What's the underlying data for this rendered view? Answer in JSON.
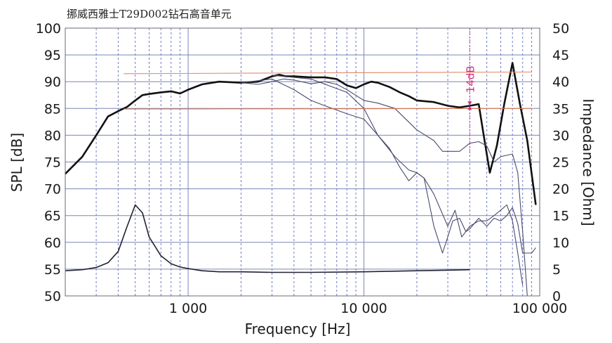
{
  "chart_data": {
    "type": "line",
    "title": "挪威西雅士T29D002钻石高音单元",
    "xlabel": "Frequency [Hz]",
    "ylabel_left": "SPL [dB]",
    "ylabel_right": "Impedance [Ohm]",
    "x_scale": "log",
    "xlim": [
      200,
      100000
    ],
    "ylim_left": [
      50,
      100
    ],
    "ylim_right": [
      0,
      50
    ],
    "x_ticks": [
      {
        "value": 1000,
        "label": "1 000"
      },
      {
        "value": 10000,
        "label": "10 000"
      },
      {
        "value": 100000,
        "label": "100 000"
      }
    ],
    "y_ticks_left": [
      100,
      95,
      90,
      85,
      80,
      75,
      70,
      65,
      60,
      55,
      50
    ],
    "y_ticks_right": [
      50,
      45,
      40,
      35,
      30,
      25,
      20,
      15,
      10,
      5,
      0
    ],
    "grid": true,
    "series": [
      {
        "axis": "left",
        "style": "bold",
        "color": "#111111",
        "points": [
          [
            200,
            72.8
          ],
          [
            250,
            76
          ],
          [
            300,
            80
          ],
          [
            350,
            83.5
          ],
          [
            400,
            84.5
          ],
          [
            450,
            85.3
          ],
          [
            500,
            86.5
          ],
          [
            550,
            87.5
          ],
          [
            600,
            87.7
          ],
          [
            700,
            88
          ],
          [
            800,
            88.2
          ],
          [
            900,
            87.8
          ],
          [
            1000,
            88.5
          ],
          [
            1200,
            89.5
          ],
          [
            1500,
            90
          ],
          [
            2000,
            89.8
          ],
          [
            2500,
            90
          ],
          [
            3000,
            91
          ],
          [
            3300,
            91.3
          ],
          [
            3600,
            91
          ],
          [
            4000,
            91
          ],
          [
            5000,
            90.8
          ],
          [
            6000,
            90.8
          ],
          [
            7000,
            90.5
          ],
          [
            8000,
            89.3
          ],
          [
            9000,
            88.8
          ],
          [
            10000,
            89.5
          ],
          [
            11000,
            90
          ],
          [
            12000,
            89.8
          ],
          [
            14000,
            89
          ],
          [
            16000,
            88
          ],
          [
            18000,
            87.3
          ],
          [
            20000,
            86.5
          ],
          [
            25000,
            86.2
          ],
          [
            30000,
            85.5
          ],
          [
            35000,
            85.2
          ],
          [
            40000,
            85.5
          ],
          [
            45000,
            85.8
          ],
          [
            48000,
            80
          ],
          [
            52000,
            73
          ],
          [
            57000,
            78
          ],
          [
            63000,
            86
          ],
          [
            70000,
            93.5
          ],
          [
            77000,
            86
          ],
          [
            85000,
            79
          ],
          [
            95000,
            67
          ]
        ]
      },
      {
        "axis": "left",
        "style": "thin",
        "color": "#4a4a6e",
        "points": [
          [
            2000,
            89.8
          ],
          [
            2500,
            89.5
          ],
          [
            3000,
            90
          ],
          [
            3500,
            90.5
          ],
          [
            4000,
            90.3
          ],
          [
            5000,
            89.6
          ],
          [
            6000,
            90
          ],
          [
            7000,
            89.5
          ],
          [
            8000,
            88.5
          ],
          [
            10000,
            86.5
          ],
          [
            12000,
            86
          ],
          [
            15000,
            85
          ],
          [
            20000,
            81
          ],
          [
            25000,
            79
          ],
          [
            28000,
            77
          ],
          [
            35000,
            77
          ],
          [
            40000,
            78.5
          ],
          [
            45000,
            78.8
          ],
          [
            50000,
            78
          ],
          [
            55000,
            75
          ],
          [
            60000,
            76
          ],
          [
            70000,
            76.5
          ],
          [
            75000,
            73
          ],
          [
            80000,
            62
          ],
          [
            85000,
            50
          ]
        ]
      },
      {
        "axis": "left",
        "style": "thin",
        "color": "#4a4a6e",
        "points": [
          [
            2000,
            89.8
          ],
          [
            3000,
            90.5
          ],
          [
            4000,
            88.5
          ],
          [
            5000,
            86.5
          ],
          [
            6000,
            85.5
          ],
          [
            8000,
            84
          ],
          [
            10000,
            83
          ],
          [
            12000,
            80
          ],
          [
            15000,
            76
          ],
          [
            18000,
            73.5
          ],
          [
            20000,
            73
          ],
          [
            22000,
            72
          ],
          [
            25000,
            69
          ],
          [
            30000,
            63
          ],
          [
            33000,
            66
          ],
          [
            36000,
            61
          ],
          [
            40000,
            63
          ],
          [
            45000,
            64
          ],
          [
            50000,
            64
          ],
          [
            55000,
            65
          ],
          [
            60000,
            66
          ],
          [
            65000,
            67
          ],
          [
            70000,
            64
          ],
          [
            75000,
            58
          ],
          [
            80000,
            52
          ]
        ]
      },
      {
        "axis": "left",
        "style": "thin",
        "color": "#4a4a6e",
        "points": [
          [
            3000,
            91.2
          ],
          [
            5000,
            90.5
          ],
          [
            8000,
            88
          ],
          [
            10000,
            85
          ],
          [
            12000,
            80
          ],
          [
            14000,
            77.5
          ],
          [
            16000,
            74
          ],
          [
            18000,
            71.5
          ],
          [
            20000,
            73
          ],
          [
            22000,
            72
          ],
          [
            25000,
            63
          ],
          [
            28000,
            58
          ],
          [
            30000,
            61
          ],
          [
            32000,
            64
          ],
          [
            35000,
            64.5
          ],
          [
            38000,
            62
          ],
          [
            40000,
            62.5
          ],
          [
            45000,
            64.5
          ],
          [
            50000,
            63
          ],
          [
            55000,
            64.5
          ],
          [
            60000,
            64
          ],
          [
            65000,
            65
          ],
          [
            70000,
            66.5
          ],
          [
            75000,
            63.5
          ],
          [
            80000,
            58
          ],
          [
            90000,
            58
          ],
          [
            95000,
            59
          ]
        ]
      },
      {
        "axis": "right",
        "style": "medium",
        "color": "#222233",
        "points": [
          [
            200,
            4.7
          ],
          [
            250,
            4.9
          ],
          [
            300,
            5.3
          ],
          [
            350,
            6.2
          ],
          [
            400,
            8.3
          ],
          [
            450,
            13
          ],
          [
            500,
            17
          ],
          [
            550,
            15.5
          ],
          [
            600,
            11
          ],
          [
            700,
            7.5
          ],
          [
            800,
            6
          ],
          [
            900,
            5.4
          ],
          [
            1000,
            5.1
          ],
          [
            1200,
            4.7
          ],
          [
            1500,
            4.5
          ],
          [
            2000,
            4.5
          ],
          [
            3000,
            4.4
          ],
          [
            5000,
            4.4
          ],
          [
            10000,
            4.5
          ],
          [
            20000,
            4.7
          ],
          [
            30000,
            4.8
          ],
          [
            40000,
            4.9
          ]
        ]
      },
      {
        "axis": "left",
        "style": "thin",
        "color": "#e08a6a",
        "points": [
          [
            430,
            91.5
          ],
          [
            90000,
            91.8
          ]
        ]
      },
      {
        "axis": "left",
        "style": "thin",
        "color": "#d8744e",
        "points": [
          [
            430,
            84.9
          ],
          [
            90000,
            85
          ]
        ]
      }
    ],
    "annotations": [
      {
        "text": "14dB",
        "x": 40000,
        "y1": 85,
        "y2": 100,
        "color": "#d63384"
      }
    ]
  }
}
